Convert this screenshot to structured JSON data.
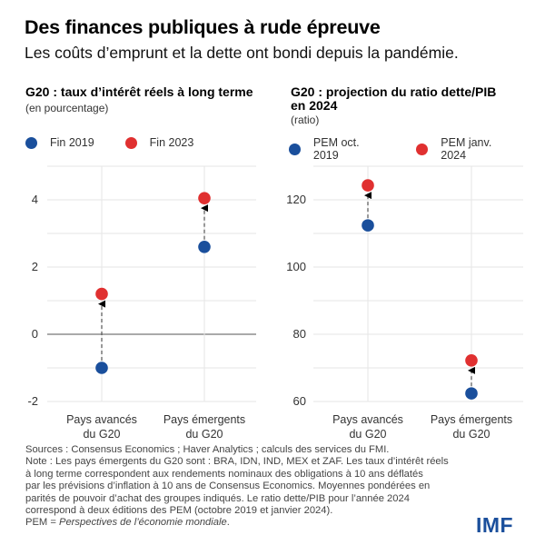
{
  "title": "Des finances publiques à rude épreuve",
  "subtitle": "Les coûts d’emprunt et la dette ont bondi depuis la pandémie.",
  "colors": {
    "series_2019": "#1a4f9c",
    "series_2023": "#e03030",
    "grid": "#e6e6e6",
    "zero_line": "#777777",
    "logo": "#1b4f9c"
  },
  "chart_data": [
    {
      "type": "scatter",
      "title": "G20 : taux d’intérêt réels à long terme",
      "unit": "(en pourcentage)",
      "categories": [
        "Pays avancés\ndu G20",
        "Pays émergents\ndu G20"
      ],
      "category_lines": [
        [
          "Pays avancés",
          "du G20"
        ],
        [
          "Pays émergents",
          "du G20"
        ]
      ],
      "series": [
        {
          "name": "Fin 2019",
          "color": "#1a4f9c",
          "values": [
            -1.0,
            2.6
          ]
        },
        {
          "name": "Fin 2023",
          "color": "#e03030",
          "values": [
            1.2,
            4.05
          ]
        }
      ],
      "arrows": "dashed from first series to second series",
      "ylim": [
        -2,
        5
      ],
      "yticks": [
        -2,
        0,
        2,
        4
      ],
      "ytick_labels": [
        "-2",
        "0",
        "2",
        "4"
      ],
      "minor_grid_step": 1,
      "zero_line": 0,
      "grid": true,
      "legend": "top"
    },
    {
      "type": "scatter",
      "title": "G20 : projection du ratio dette/PIB en 2024",
      "title_lines": [
        "G20 : projection du ratio dette/PIB",
        "en 2024"
      ],
      "unit": "(ratio)",
      "categories": [
        "Pays avancés\ndu G20",
        "Pays émergents\ndu G20"
      ],
      "category_lines": [
        [
          "Pays avancés",
          "du G20"
        ],
        [
          "Pays émergents",
          "du G20"
        ]
      ],
      "series": [
        {
          "name": "PEM oct. 2019",
          "color": "#1a4f9c",
          "values": [
            112.4,
            62.4
          ]
        },
        {
          "name": "PEM janv. 2024",
          "color": "#e03030",
          "values": [
            124.3,
            72.2
          ]
        }
      ],
      "arrows": "dashed from first series to second series",
      "ylim": [
        60,
        130
      ],
      "yticks": [
        60,
        80,
        100,
        120
      ],
      "ytick_labels": [
        "60",
        "80",
        "100",
        "120"
      ],
      "minor_grid_step": 10,
      "grid": true,
      "legend": "top"
    }
  ],
  "notes": [
    "Sources : Consensus Economics ; Haver Analytics ; calculs des services du FMI.",
    "Note : Les pays émergents du G20 sont : BRA, IDN, IND, MEX et ZAF. Les taux d’intérêt réels",
    "à long terme correspondent aux rendements nominaux des obligations à 10 ans déflatés",
    "par les prévisions d’inflation à 10 ans de Consensus Economics. Moyennes pondérées en",
    "parités de pouvoir d’achat des groupes indiqués. Le ratio dette/PIB pour l’année 2024",
    "correspond à deux éditions des PEM (octobre 2019 et janvier 2024)."
  ],
  "notes_last": {
    "prefix": "PEM = ",
    "italic": "Perspectives de l’économie mondiale",
    "suffix": "."
  },
  "logo": "IMF"
}
